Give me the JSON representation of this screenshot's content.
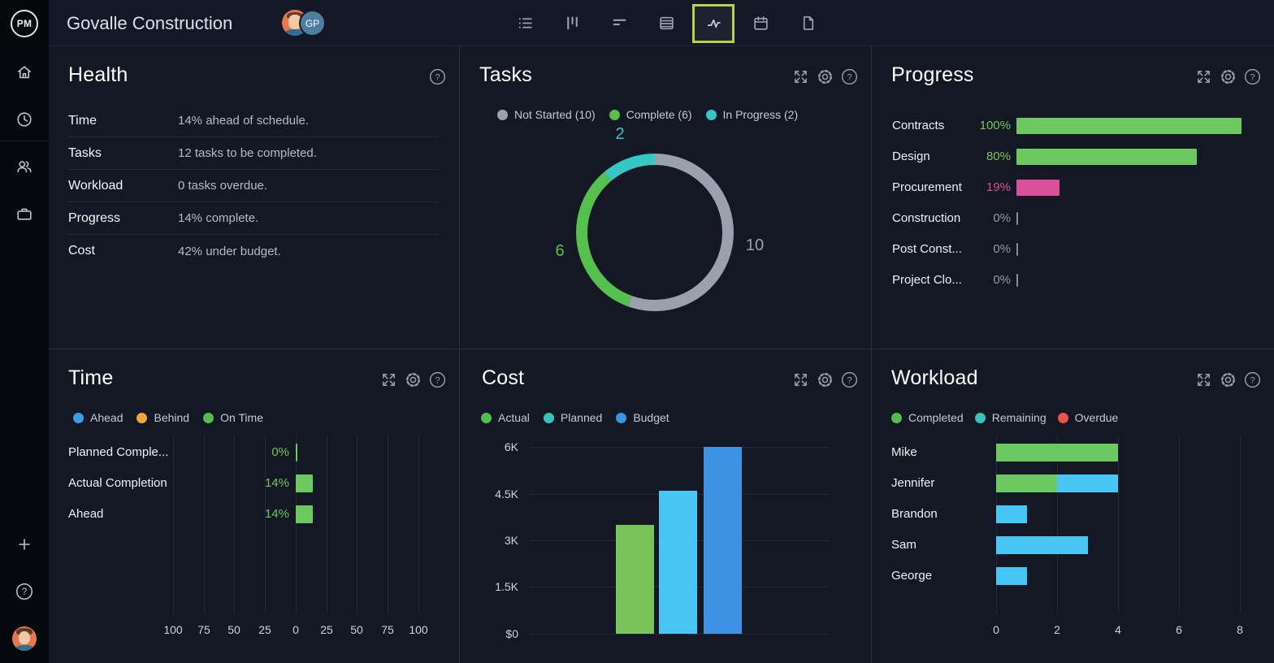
{
  "topbar": {
    "logo_text": "PM",
    "title": "Govalle Construction",
    "avatar_initials": "GP",
    "tools": [
      {
        "name": "list-view"
      },
      {
        "name": "board-view"
      },
      {
        "name": "gantt-view"
      },
      {
        "name": "sheet-view"
      },
      {
        "name": "activity-view",
        "selected": true
      },
      {
        "name": "calendar-view"
      },
      {
        "name": "docs-view"
      }
    ],
    "selected_tool_border": "#b5d63c"
  },
  "sidebar": {
    "items": [
      "home",
      "time",
      "team",
      "portfolio",
      "add",
      "help",
      "profile"
    ]
  },
  "panels": {
    "health": {
      "title": "Health",
      "rows": [
        {
          "label": "Time",
          "value": "14% ahead of schedule."
        },
        {
          "label": "Tasks",
          "value": "12 tasks to be completed."
        },
        {
          "label": "Workload",
          "value": "0 tasks overdue."
        },
        {
          "label": "Progress",
          "value": "14% complete."
        },
        {
          "label": "Cost",
          "value": "42% under budget."
        }
      ]
    },
    "tasks": {
      "title": "Tasks"
    },
    "progress": {
      "title": "Progress"
    },
    "time": {
      "title": "Time"
    },
    "cost": {
      "title": "Cost"
    },
    "workload": {
      "title": "Workload"
    }
  },
  "chart_data": {
    "tasks": {
      "type": "pie",
      "donut": true,
      "total": 18,
      "legend_labels": [
        "Not Started (10)",
        "Complete (6)",
        "In Progress (2)"
      ],
      "slices": [
        {
          "label": "Not Started",
          "value": 10,
          "color": "#9aa1ae"
        },
        {
          "label": "Complete",
          "value": 6,
          "color": "#55c04e"
        },
        {
          "label": "In Progress",
          "value": 2,
          "color": "#34c7c3"
        }
      ]
    },
    "progress": {
      "type": "bar",
      "orientation": "horizontal",
      "xlim": [
        0,
        100
      ],
      "rows": [
        {
          "label": "Contracts",
          "value": 100,
          "display": "100%",
          "bar_color": "#6cc95f",
          "label_color": "#6cc95f"
        },
        {
          "label": "Design",
          "value": 80,
          "display": "80%",
          "bar_color": "#6cc95f",
          "label_color": "#6cc95f"
        },
        {
          "label": "Procurement",
          "value": 19,
          "display": "19%",
          "bar_color": "#da4f9b",
          "label_color": "#da4f9b"
        },
        {
          "label": "Construction",
          "value": 0,
          "display": "0%",
          "bar_color": null,
          "label_color": "#9097a3"
        },
        {
          "label": "Post Const...",
          "value": 0,
          "display": "0%",
          "bar_color": null,
          "label_color": "#9097a3"
        },
        {
          "label": "Project Clo...",
          "value": 0,
          "display": "0%",
          "bar_color": null,
          "label_color": "#9097a3"
        }
      ]
    },
    "time": {
      "type": "bar",
      "orientation": "horizontal",
      "mirrored_axis": true,
      "xlim": [
        -100,
        100
      ],
      "xticks": [
        "100",
        "75",
        "50",
        "25",
        "0",
        "25",
        "50",
        "75",
        "100"
      ],
      "bar_color": "#6cc95f",
      "legend": [
        {
          "name": "Ahead",
          "color": "#3d9ce8"
        },
        {
          "name": "Behind",
          "color": "#eda83d"
        },
        {
          "name": "On Time",
          "color": "#55bb4f"
        }
      ],
      "rows": [
        {
          "label": "Planned Comple...",
          "value": 0,
          "display": "0%"
        },
        {
          "label": "Actual Completion",
          "value": 14,
          "display": "14%"
        },
        {
          "label": "Ahead",
          "value": 14,
          "display": "14%"
        }
      ]
    },
    "cost": {
      "type": "bar",
      "categories": [
        "Actual",
        "Planned",
        "Budget"
      ],
      "values": [
        3500,
        4600,
        6000
      ],
      "colors": [
        "#7cc25a",
        "#47c6f4",
        "#3d92e4"
      ],
      "ylim": [
        0,
        6000
      ],
      "yticks": [
        "$0",
        "1.5K",
        "3K",
        "4.5K",
        "6K"
      ],
      "legend": [
        {
          "name": "Actual",
          "color": "#55bb4f"
        },
        {
          "name": "Planned",
          "color": "#38c2bb"
        },
        {
          "name": "Budget",
          "color": "#3d92e4"
        }
      ]
    },
    "workload": {
      "type": "bar",
      "orientation": "horizontal",
      "stacked": true,
      "categories": [
        "Mike",
        "Jennifer",
        "Brandon",
        "Sam",
        "George"
      ],
      "xlim": [
        0,
        8
      ],
      "xticks": [
        "0",
        "2",
        "4",
        "6",
        "8"
      ],
      "legend": [
        {
          "name": "Completed",
          "color": "#55bb4f"
        },
        {
          "name": "Remaining",
          "color": "#38c2bb"
        },
        {
          "name": "Overdue",
          "color": "#e9534a"
        }
      ],
      "series": [
        {
          "name": "Completed",
          "bar_color": "#6cc95f",
          "values": [
            4,
            2,
            0,
            0,
            0
          ]
        },
        {
          "name": "Remaining",
          "bar_color": "#47c6f4",
          "values": [
            0,
            2,
            1,
            3,
            1
          ]
        },
        {
          "name": "Overdue",
          "bar_color": "#e9534a",
          "values": [
            0,
            0,
            0,
            0,
            0
          ]
        }
      ]
    }
  }
}
